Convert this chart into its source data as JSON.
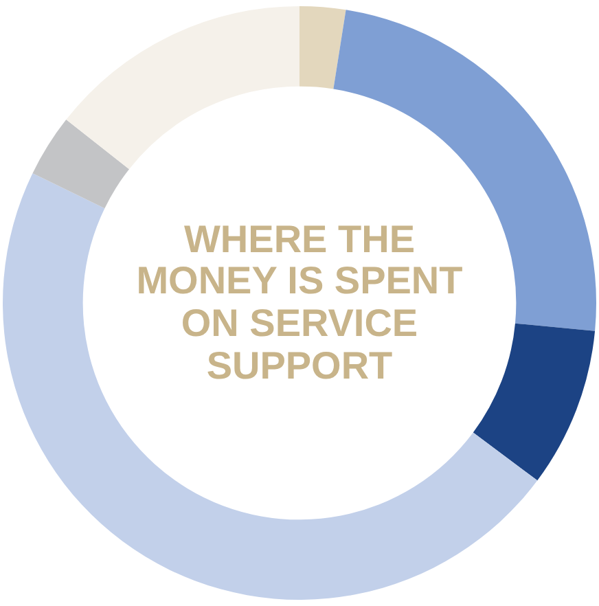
{
  "chart_data": {
    "type": "donut",
    "title": "WHERE THE MONEY IS SPENT ON SERVICE SUPPORT",
    "categories": [
      null,
      null,
      null,
      null,
      null,
      null
    ],
    "values": [
      2.5,
      24,
      8.7,
      47,
      3.4,
      14.4
    ],
    "colors": [
      "#e3d7bd",
      "#7f9fd4",
      "#1c4384",
      "#c2d0ea",
      "#c3c4c6",
      "#f5f1ea"
    ],
    "legend": false
  }
}
